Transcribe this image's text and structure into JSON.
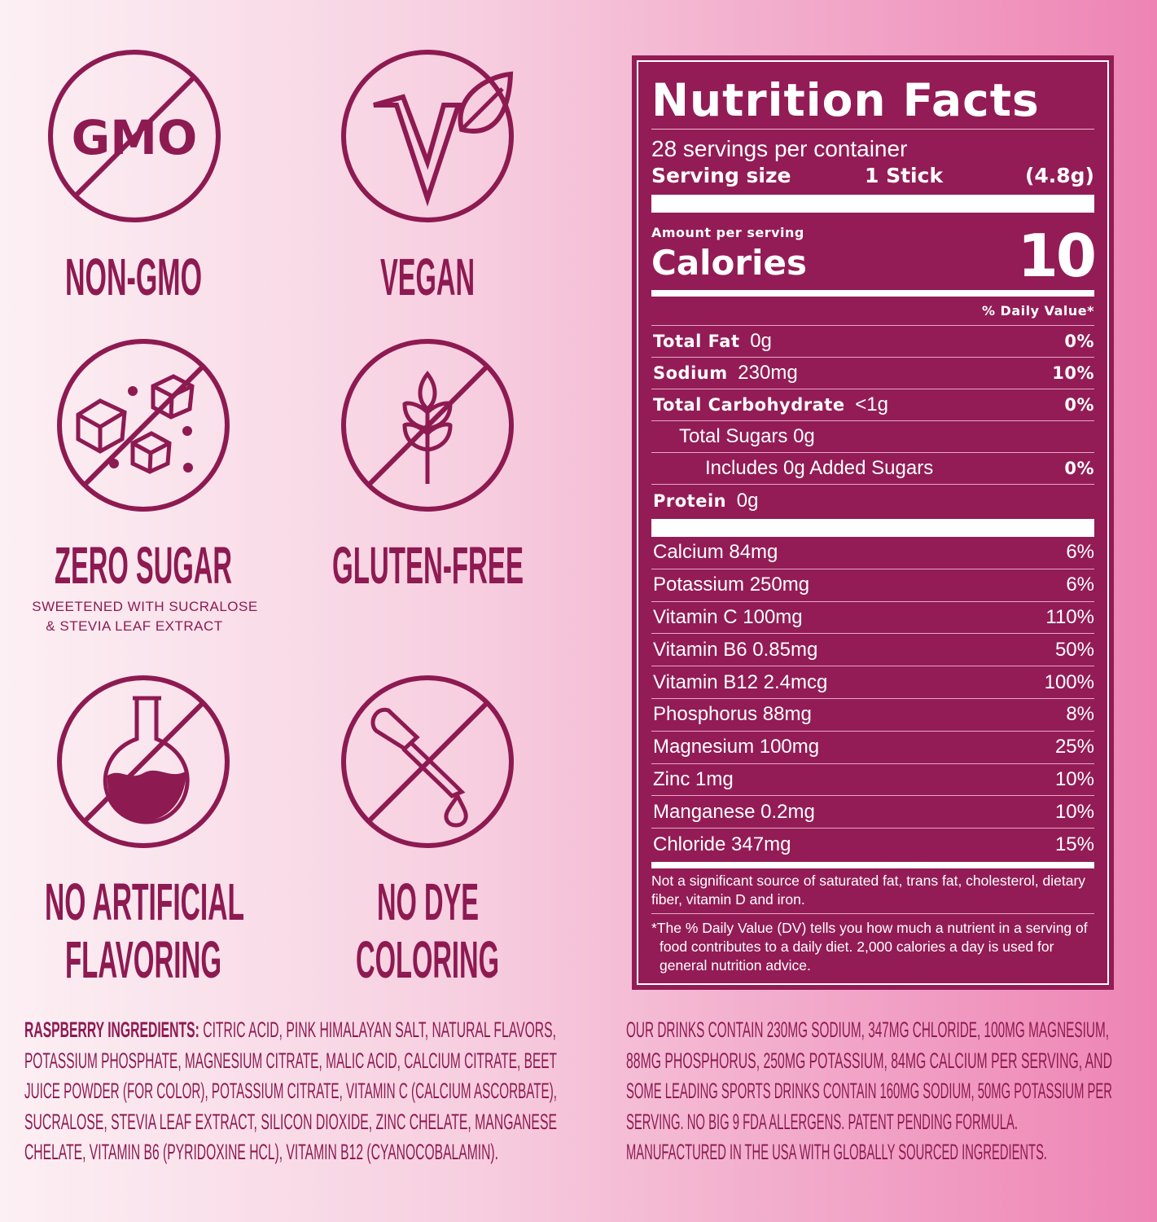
{
  "badges": [
    {
      "icon": "no-gmo-icon",
      "icon_text": "GMO",
      "label": "NON-GMO"
    },
    {
      "icon": "vegan-leaf-icon",
      "icon_text": "V",
      "label": "VEGAN"
    },
    {
      "icon": "no-sugar-cubes-icon",
      "label": "ZERO SUGAR",
      "sub1": "SWEETENED WITH SUCRALOSE",
      "sub2": "&  STEVIA LEAF EXTRACT"
    },
    {
      "icon": "no-wheat-icon",
      "label": "GLUTEN-FREE"
    },
    {
      "icon": "no-flask-icon",
      "label1": "NO ARTIFICIAL",
      "label2": "FLAVORING"
    },
    {
      "icon": "no-dropper-icon",
      "label1": "NO DYE",
      "label2": "COLORING"
    }
  ],
  "colors": {
    "brand": "#8e1a52",
    "label_bg": "#931c56"
  },
  "nutrition": {
    "title": "Nutrition Facts",
    "servings": "28 servings per container",
    "serving_size_label": "Serving size",
    "serving_size_value": "1 Stick",
    "serving_size_weight": "(4.8g)",
    "amount_per_serving": "Amount per serving",
    "calories_label": "Calories",
    "calories_value": "10",
    "dv_header": "% Daily Value*",
    "rows": [
      {
        "name": "Total Fat",
        "amount": "0g",
        "dv": "0%"
      },
      {
        "name": "Sodium",
        "amount": "230mg",
        "dv": "10%"
      },
      {
        "name": "Total Carbohydrate",
        "amount": "<1g",
        "dv": "0%"
      },
      {
        "name": "Total Sugars 0g",
        "amount": "",
        "dv": ""
      },
      {
        "name": "Includes 0g Added Sugars",
        "amount": "",
        "dv": "0%"
      },
      {
        "name": "Protein",
        "amount": "0g",
        "dv": ""
      }
    ],
    "micros": [
      {
        "name": "Calcium 84mg",
        "dv": "6%"
      },
      {
        "name": "Potassium 250mg",
        "dv": "6%"
      },
      {
        "name": "Vitamin C 100mg",
        "dv": "110%"
      },
      {
        "name": "Vitamin B6 0.85mg",
        "dv": "50%"
      },
      {
        "name": "Vitamin B12 2.4mcg",
        "dv": "100%"
      },
      {
        "name": "Phosphorus 88mg",
        "dv": "8%"
      },
      {
        "name": "Magnesium 100mg",
        "dv": "25%"
      },
      {
        "name": "Zinc 1mg",
        "dv": "10%"
      },
      {
        "name": "Manganese 0.2mg",
        "dv": "10%"
      },
      {
        "name": "Chloride 347mg",
        "dv": "15%"
      }
    ],
    "footnote1": "Not a significant source of saturated fat, trans fat, cholesterol, dietary fiber, vitamin D and iron.",
    "footnote2": "*The % Daily Value (DV) tells you how much a nutrient in a serving of food contributes to a daily diet. 2,000 calories a day is used for general nutrition advice."
  },
  "ingredients": {
    "heading": "RASPBERRY INGREDIENTS:",
    "lines": [
      " CITRIC ACID, PINK HIMALAYAN SALT, NATURAL FLAVORS,",
      "POTASSIUM PHOSPHATE, MAGNESIUM CITRATE, MALIC ACID, CALCIUM CITRATE, BEET",
      "JUICE POWDER (FOR COLOR), POTASSIUM CITRATE, VITAMIN C (CALCIUM ASCORBATE),",
      "SUCRALOSE, STEVIA LEAF EXTRACT, SILICON DIOXIDE, ZINC CHELATE, MANGANESE",
      "CHELATE, VITAMIN B6 (PYRIDOXINE HCL), VITAMIN B12 (CYANOCOBALAMIN)."
    ]
  },
  "claims": {
    "lines": [
      "OUR DRINKS CONTAIN 230MG SODIUM, 347MG CHLORIDE,  100MG MAGNESIUM,",
      "88MG PHOSPHORUS, 250MG POTASSIUM, 84MG CALCIUM PER SERVING, AND",
      "SOME LEADING SPORTS DRINKS CONTAIN 160MG SODIUM, 50MG POTASSIUM PER",
      "SERVING. NO BIG 9 FDA ALLERGENS. PATENT PENDING FORMULA.",
      "MANUFACTURED IN THE USA WITH GLOBALLY SOURCED INGREDIENTS."
    ]
  }
}
